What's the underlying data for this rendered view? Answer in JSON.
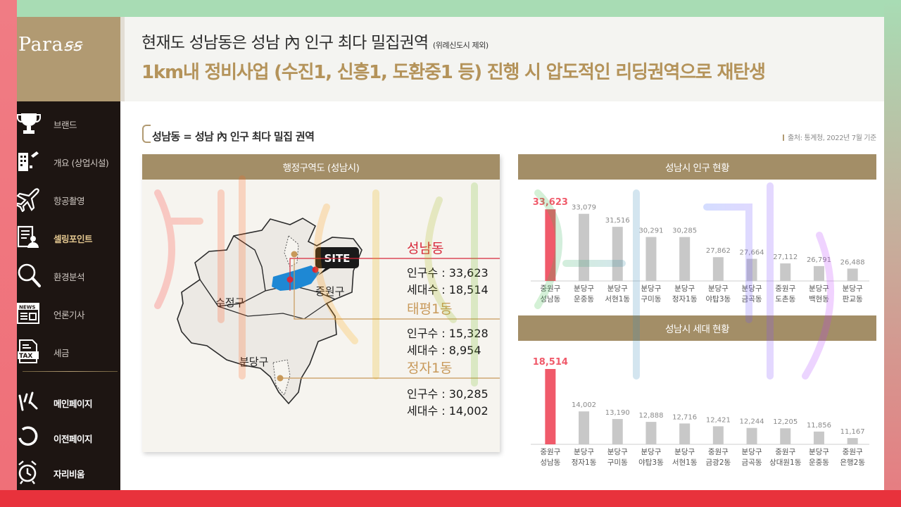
{
  "brand": {
    "logo_text": "Para",
    "logo_swash": "ss"
  },
  "sidebar": {
    "items": [
      {
        "label": "브랜드",
        "icon": "trophy-icon"
      },
      {
        "label": "개요 (상업시설)",
        "icon": "building-icon"
      },
      {
        "label": "항공촬영",
        "icon": "airplane-icon"
      },
      {
        "label": "셀링포인트",
        "icon": "document-person-icon",
        "active": true
      },
      {
        "label": "환경분석",
        "icon": "magnifier-icon"
      },
      {
        "label": "언론기사",
        "icon": "news-icon"
      },
      {
        "label": "세금",
        "icon": "tax-icon"
      }
    ],
    "bottom": [
      {
        "label": "메인페이지",
        "icon": "home-icon"
      },
      {
        "label": "이전페이지",
        "icon": "back-icon"
      },
      {
        "label": "자리비움",
        "icon": "alarm-clock-icon"
      }
    ]
  },
  "header": {
    "title_main": "현재도 성남동은 성남 內 인구 최다 밀집권역",
    "title_note": "(위례신도시 제외)",
    "subtitle": "1km내 정비사업 (수진1, 신흥1, 도환중1 등) 진행 시 압도적인 리딩권역으로 재탄생"
  },
  "section": {
    "title": "성남동 = 성남 內 인구 최다 밀집 권역",
    "source": "출처: 통계청, 2022년 7월 기준"
  },
  "map": {
    "panel_title": "행정구역도 (성남시)",
    "districts": [
      "수정구",
      "중원구",
      "분당구"
    ],
    "site_label": "SITE",
    "accent": "#d7283a",
    "gold": "#b4935a",
    "areas": [
      {
        "name": "성남동",
        "pop_label": "인구수 : 33,623",
        "hh_label": "세대수 : 18,514",
        "color": "#d7283a"
      },
      {
        "name": "태평1동",
        "pop_label": "인구수 : 15,328",
        "hh_label": "세대수 : 8,954",
        "color": "#c8995a"
      },
      {
        "name": "정자1동",
        "pop_label": "인구수 : 30,285",
        "hh_label": "세대수 : 14,002",
        "color": "#c8995a"
      }
    ]
  },
  "chart_data": [
    {
      "type": "bar",
      "title": "성남시 인구 현황",
      "categories": [
        "중원구\n성남동",
        "분당구\n운중동",
        "분당구\n서현1동",
        "분당구\n구미동",
        "분당구\n정자1동",
        "분당구\n야탑3동",
        "분당구\n금곡동",
        "중원구\n도촌동",
        "분당구\n백현동",
        "분당구\n판교동"
      ],
      "values": [
        33623,
        33079,
        31516,
        30291,
        30285,
        27862,
        27664,
        27112,
        26791,
        26488
      ],
      "value_labels": [
        "33,623",
        "33,079",
        "31,516",
        "30,291",
        "30,285",
        "27,862",
        "27,664",
        "27,112",
        "26,791",
        "26,488"
      ],
      "ylim": [
        25000,
        35000
      ],
      "highlight_index": 0,
      "highlight_color": "#f05a6a",
      "bar_color": "#c8c8c8"
    },
    {
      "type": "bar",
      "title": "성남시 세대 현황",
      "categories": [
        "중원구\n성남동",
        "분당구\n정자1동",
        "분당구\n구미동",
        "분당구\n야탑3동",
        "분당구\n서현1동",
        "중원구\n금광2동",
        "분당구\n금곡동",
        "중원구\n상대원1동",
        "분당구\n운중동",
        "중원구\n은행2동"
      ],
      "values": [
        18514,
        14002,
        13190,
        12888,
        12716,
        12421,
        12244,
        12205,
        11856,
        11167
      ],
      "value_labels": [
        "18,514",
        "14,002",
        "13,190",
        "12,888",
        "12,716",
        "12,421",
        "12,244",
        "12,205",
        "11,856",
        "11,167"
      ],
      "ylim": [
        10500,
        18514
      ],
      "highlight_index": 0,
      "highlight_color": "#f05a6a",
      "bar_color": "#c8c8c8"
    }
  ],
  "colors": {
    "sidebar_bg": "#1d1512",
    "gold": "#b19a72",
    "panel_head": "#a38e67"
  }
}
